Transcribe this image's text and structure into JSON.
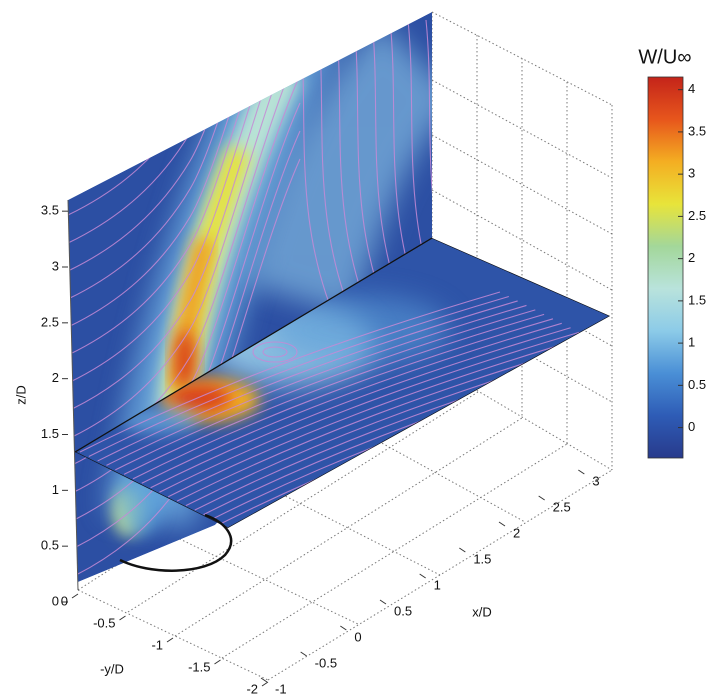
{
  "chart_data": {
    "type": "surface3d",
    "xlabel": "x/D",
    "ylabel": "-y/D",
    "zlabel": "z/D",
    "xlim": [
      -1,
      3.5
    ],
    "xticks": [
      -1,
      -0.5,
      0,
      0.5,
      1,
      1.5,
      2,
      2.5,
      3
    ],
    "ylim": [
      -2,
      0
    ],
    "yticks": [
      0,
      -0.5,
      -1,
      -1.5,
      -2
    ],
    "zlim": [
      0,
      3.6
    ],
    "zticks": [
      0,
      0.5,
      1,
      1.5,
      2,
      2.5,
      3,
      3.5
    ],
    "colorbar": {
      "title": "W/U∞",
      "clim": [
        -0.36,
        4.15
      ],
      "ticks": [
        0,
        0.5,
        1,
        1.5,
        2,
        2.5,
        3,
        3.5,
        4
      ],
      "colormap": [
        "#283a8c",
        "#2e5cb6",
        "#4a8fd6",
        "#8ccbe8",
        "#b9e3dc",
        "#a3d79a",
        "#e8e43a",
        "#f4ae22",
        "#e7561c",
        "#c4241a"
      ]
    }
  }
}
